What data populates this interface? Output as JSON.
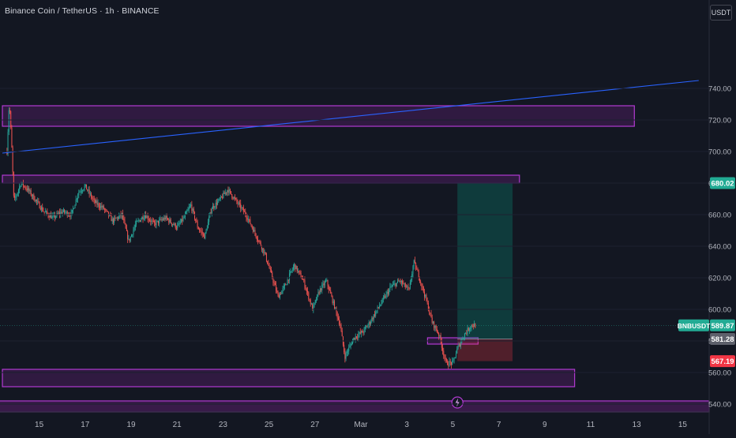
{
  "header": {
    "title": "Binance Coin / TetherUS · 1h · BINANCE",
    "currency": "USDT"
  },
  "chart_data": {
    "type": "candlestick",
    "y_axis": {
      "min": 530,
      "max": 752,
      "ticks": [
        540,
        560,
        580,
        600,
        620,
        640,
        660,
        680,
        700,
        720,
        740
      ]
    },
    "y_tick_labels": [
      "540.00",
      "560.00",
      "580.00",
      "600.00",
      "620.00",
      "640.00",
      "660.00",
      "680.00",
      "700.00",
      "720.00",
      "740.00"
    ],
    "x_axis": {
      "labels": [
        "15",
        "17",
        "19",
        "21",
        "23",
        "25",
        "27",
        "Mar",
        "3",
        "5",
        "7",
        "9",
        "11",
        "13",
        "15"
      ],
      "positions": [
        0,
        2,
        4,
        6,
        8,
        10,
        12,
        14,
        16,
        18,
        20,
        22,
        24,
        26,
        28
      ]
    },
    "price_path": [
      [
        -1.4,
        700
      ],
      [
        -1.3,
        732
      ],
      [
        -1.2,
        705
      ],
      [
        -1.1,
        668
      ],
      [
        -0.8,
        680
      ],
      [
        -0.5,
        676
      ],
      [
        -0.2,
        670
      ],
      [
        0.2,
        662
      ],
      [
        0.6,
        658
      ],
      [
        1.0,
        662
      ],
      [
        1.4,
        660
      ],
      [
        1.7,
        674
      ],
      [
        2.0,
        678
      ],
      [
        2.4,
        668
      ],
      [
        2.8,
        664
      ],
      [
        3.2,
        656
      ],
      [
        3.6,
        660
      ],
      [
        3.9,
        643
      ],
      [
        4.2,
        654
      ],
      [
        4.6,
        660
      ],
      [
        5.0,
        654
      ],
      [
        5.5,
        658
      ],
      [
        6.0,
        652
      ],
      [
        6.3,
        658
      ],
      [
        6.6,
        666
      ],
      [
        6.9,
        652
      ],
      [
        7.2,
        646
      ],
      [
        7.5,
        664
      ],
      [
        7.9,
        670
      ],
      [
        8.2,
        676
      ],
      [
        8.6,
        668
      ],
      [
        9.0,
        660
      ],
      [
        9.4,
        648
      ],
      [
        9.8,
        636
      ],
      [
        10.1,
        622
      ],
      [
        10.4,
        608
      ],
      [
        10.7,
        615
      ],
      [
        11.1,
        628
      ],
      [
        11.5,
        618
      ],
      [
        11.9,
        600
      ],
      [
        12.2,
        612
      ],
      [
        12.5,
        618
      ],
      [
        12.8,
        604
      ],
      [
        13.1,
        590
      ],
      [
        13.3,
        570
      ],
      [
        13.7,
        582
      ],
      [
        14.1,
        586
      ],
      [
        14.4,
        592
      ],
      [
        14.8,
        602
      ],
      [
        15.3,
        614
      ],
      [
        15.7,
        618
      ],
      [
        16.1,
        612
      ],
      [
        16.3,
        630
      ],
      [
        16.5,
        622
      ],
      [
        16.8,
        608
      ],
      [
        17.1,
        592
      ],
      [
        17.4,
        584
      ],
      [
        17.7,
        566
      ],
      [
        18.0,
        566
      ],
      [
        18.2,
        575
      ],
      [
        18.5,
        584
      ],
      [
        18.8,
        590
      ],
      [
        19.0,
        589.87
      ]
    ],
    "zones": [
      {
        "x_start": -1.6,
        "x_end": 25.9,
        "y_low": 716,
        "y_high": 729
      },
      {
        "x_start": -1.6,
        "x_end": 20.9,
        "y_low": 680,
        "y_high": 685
      },
      {
        "x_start": -1.6,
        "x_end": 23.3,
        "y_low": 551,
        "y_high": 562
      },
      {
        "x_start": 16.9,
        "x_end": 19.1,
        "y_low": 578,
        "y_high": 582
      }
    ],
    "trendline": {
      "x1": -1.6,
      "y1": 699,
      "x2": 28.7,
      "y2": 745
    },
    "position_tool": {
      "x_start": 18.2,
      "x_end": 20.6,
      "entry": 581.28,
      "target": 680.02,
      "stop": 567.19
    },
    "price_labels": [
      {
        "text": "680.02",
        "value": 680.02,
        "color": "#22ab94"
      },
      {
        "text": "589.87",
        "value": 589.87,
        "color": "#22ab94",
        "prefix": "BNBUSDT"
      },
      {
        "text": "581.28",
        "value": 581.28,
        "color": "#5d606b"
      },
      {
        "text": "567.19",
        "value": 567.19,
        "color": "#f23645"
      }
    ],
    "last_price": 589.87,
    "colors": {
      "up": "#26a69a",
      "down": "#ef5350",
      "zone": "#9c27b0",
      "trend": "#2962ff",
      "axis_text": "#b2b5be"
    }
  }
}
